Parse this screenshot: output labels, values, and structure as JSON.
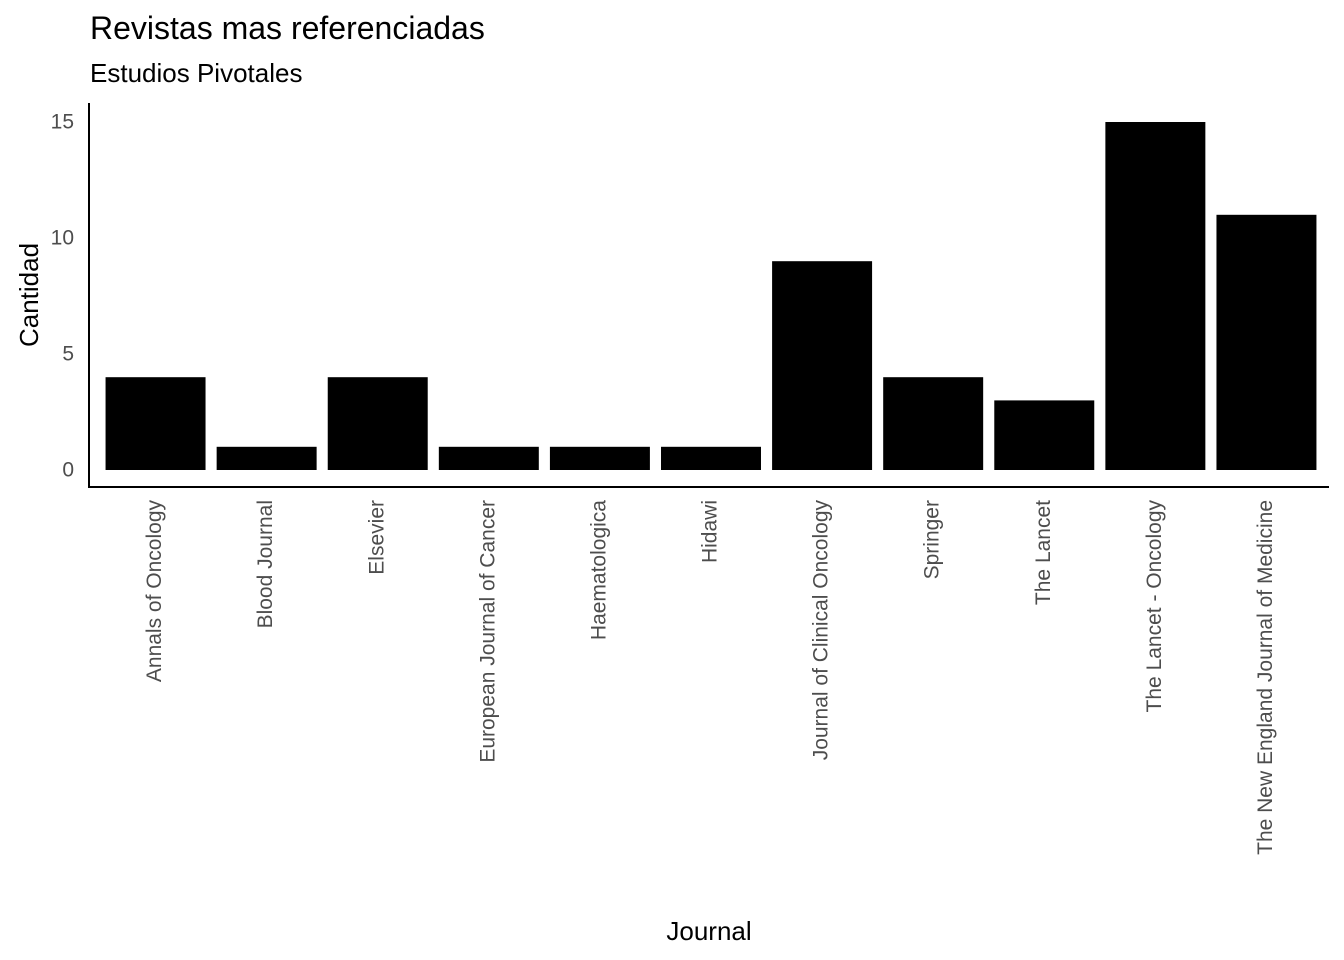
{
  "chart_data": {
    "type": "bar",
    "title": "Revistas mas referenciadas",
    "subtitle": "Estudios Pivotales",
    "xlabel": "Journal",
    "ylabel": "Cantidad",
    "categories": [
      "Annals of Oncology",
      "Blood Journal",
      "Elsevier",
      "European Journal of Cancer",
      "Haematologica",
      "Hidawi",
      "Journal of Clinical Oncology",
      "Springer",
      "The Lancet",
      "The Lancet - Oncology",
      "The New England Journal of Medicine"
    ],
    "values": [
      4,
      1,
      4,
      1,
      1,
      1,
      9,
      4,
      3,
      15,
      11
    ],
    "ylim": [
      0,
      15.75
    ],
    "yticks": [
      0,
      5,
      10,
      15
    ],
    "bar_color": "#000000",
    "grid": false
  }
}
